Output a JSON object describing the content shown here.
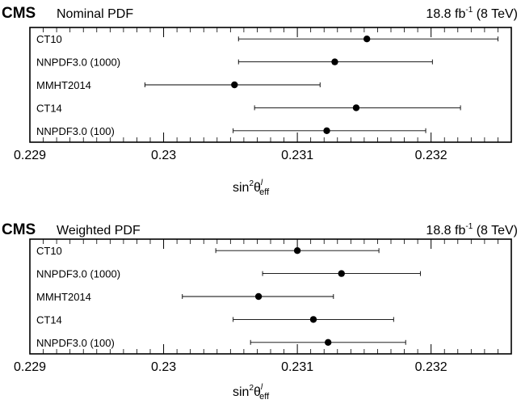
{
  "chart_data": [
    {
      "type": "scatter",
      "experiment": "CMS",
      "subtitle": "Nominal PDF",
      "luminosity": "18.8 fb",
      "lumi_exponent": "-1",
      "energy": "(8 TeV)",
      "xlabel_main": "sin",
      "xlabel_sup": "2",
      "xlabel_theta": "θ",
      "xlabel_theta_sup": "l",
      "xlabel_sub": "eff",
      "xlim": [
        0.229,
        0.2326
      ],
      "xticks": [
        0.229,
        0.23,
        0.231,
        0.232
      ],
      "xtick_labels": [
        "0.229",
        "0.23",
        "0.231",
        "0.232"
      ],
      "grid": false,
      "categories": [
        "CT10",
        "NNPDF3.0 (1000)",
        "MMHT2014",
        "CT14",
        "NNPDF3.0 (100)"
      ],
      "values": [
        0.23152,
        0.23128,
        0.23053,
        0.23144,
        0.23122
      ],
      "err_low": [
        0.00096,
        0.00072,
        0.00067,
        0.00076,
        0.0007
      ],
      "err_high": [
        0.00098,
        0.00073,
        0.00064,
        0.00078,
        0.00074
      ]
    },
    {
      "type": "scatter",
      "experiment": "CMS",
      "subtitle": "Weighted PDF",
      "luminosity": "18.8 fb",
      "lumi_exponent": "-1",
      "energy": "(8 TeV)",
      "xlabel_main": "sin",
      "xlabel_sup": "2",
      "xlabel_theta": "θ",
      "xlabel_theta_sup": "l",
      "xlabel_sub": "eff",
      "xlim": [
        0.229,
        0.2326
      ],
      "xticks": [
        0.229,
        0.23,
        0.231,
        0.232
      ],
      "xtick_labels": [
        "0.229",
        "0.23",
        "0.231",
        "0.232"
      ],
      "grid": false,
      "categories": [
        "CT10",
        "NNPDF3.0 (1000)",
        "MMHT2014",
        "CT14",
        "NNPDF3.0 (100)"
      ],
      "values": [
        0.231,
        0.23133,
        0.23071,
        0.23112,
        0.23123
      ],
      "err_low": [
        0.00061,
        0.00059,
        0.00057,
        0.0006,
        0.00058
      ],
      "err_high": [
        0.00061,
        0.00059,
        0.00056,
        0.0006,
        0.00058
      ]
    }
  ]
}
